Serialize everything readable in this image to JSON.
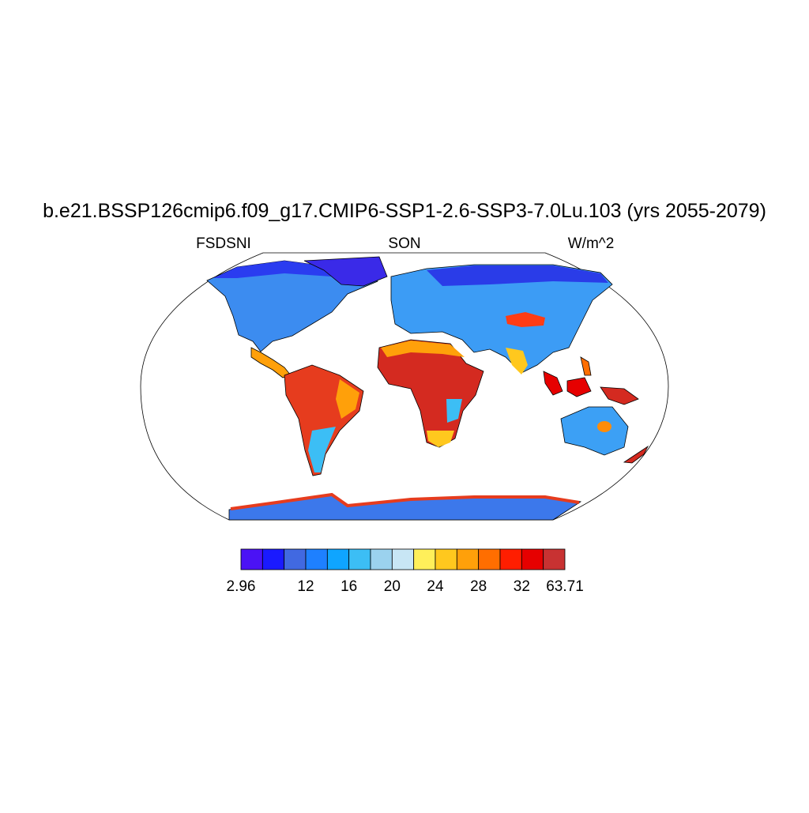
{
  "title": "b.e21.BSSP126cmip6.f09_g17.CMIP6-SSP1-2.6-SSP3-7.0Lu.103 (yrs 2055-2079)",
  "left_string": "FSDSNI",
  "center_string": "SON",
  "right_string": "W/m^2",
  "colorbar": {
    "colors": [
      "#4b12f5",
      "#1a1aff",
      "#4169e1",
      "#1e80ff",
      "#0fa5ff",
      "#3cbef5",
      "#9bd2ee",
      "#c8e6f5",
      "#ffef5a",
      "#ffc81e",
      "#ffa00a",
      "#ff6e00",
      "#ff1e00",
      "#e60000",
      "#c83232"
    ],
    "levels": [
      2.96,
      null,
      null,
      12,
      null,
      16,
      null,
      20,
      null,
      24,
      null,
      28,
      null,
      32,
      null,
      63.71
    ]
  }
}
